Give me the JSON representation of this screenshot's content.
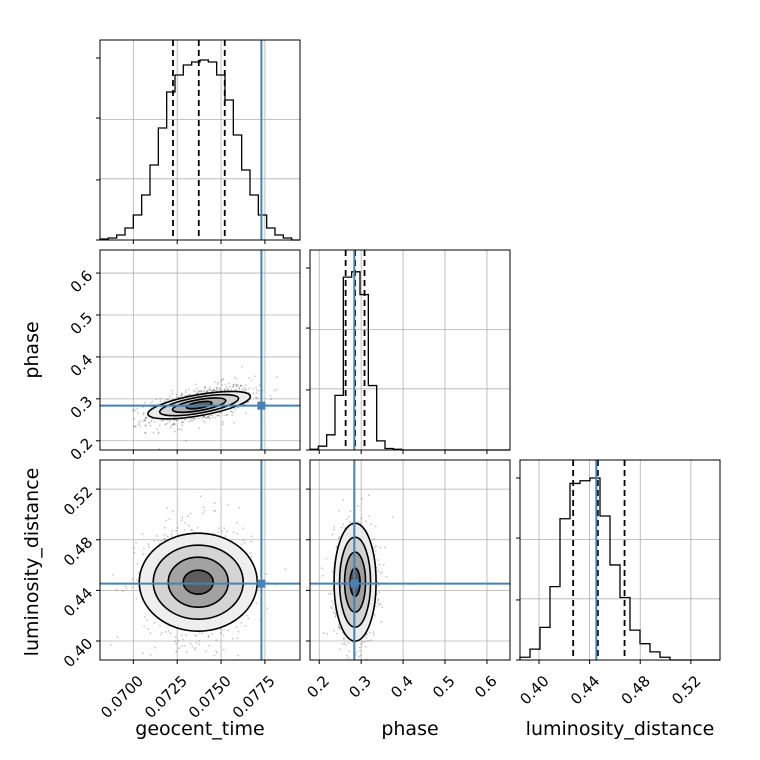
{
  "chart_data": {
    "type": "corner",
    "parameters": [
      "geocent_time",
      "phase",
      "luminosity_distance"
    ],
    "truths": {
      "geocent_time": 0.0773,
      "phase": 0.2837,
      "luminosity_distance": 0.4453
    },
    "quantiles": {
      "geocent_time": [
        0.07226,
        0.07373,
        0.07521
      ],
      "phase": [
        0.263,
        0.2855,
        0.308
      ],
      "luminosity_distance": [
        0.427,
        0.4465,
        0.4676
      ]
    },
    "ranges": {
      "geocent_time": [
        0.0681,
        0.0795
      ],
      "phase": [
        0.178,
        0.655
      ],
      "luminosity_distance": [
        0.385,
        0.543
      ]
    },
    "ticks": {
      "geocent_time": [
        "0.0700",
        "0.0725",
        "0.0750",
        "0.0775"
      ],
      "phase": [
        "0.2",
        "0.3",
        "0.4",
        "0.5",
        "0.6"
      ],
      "luminosity_distance": [
        "0.40",
        "0.44",
        "0.48",
        "0.52"
      ]
    },
    "tick_values": {
      "geocent_time": [
        0.07,
        0.0725,
        0.075,
        0.0775
      ],
      "phase": [
        0.2,
        0.3,
        0.4,
        0.5,
        0.6
      ],
      "luminosity_distance": [
        0.4,
        0.44,
        0.48,
        0.52
      ]
    },
    "histograms": {
      "geocent_time": {
        "counts": [
          1,
          2,
          5,
          12,
          25,
          45,
          75,
          112,
          148,
          165,
          175,
          178,
          180,
          178,
          165,
          140,
          105,
          70,
          45,
          25,
          12,
          5,
          2,
          0
        ],
        "max": 182
      },
      "phase": {
        "counts": [
          1,
          5,
          20,
          72,
          228,
          235,
          205,
          85,
          12,
          2,
          1,
          0,
          0,
          0,
          0,
          0,
          0,
          0,
          0,
          0,
          0,
          0,
          0,
          0
        ],
        "max": 240
      },
      "luminosity_distance": {
        "counts": [
          1,
          4,
          12,
          27,
          52,
          65,
          66,
          67,
          53,
          35,
          23,
          11,
          6,
          3,
          1,
          0,
          0,
          0,
          0,
          0
        ],
        "max": 67
      }
    },
    "grid": true,
    "xlabel_rotation": 45,
    "colors": {
      "truth": "#4682b4",
      "hist": "#000000",
      "quantile": "#000000",
      "density": "#000000",
      "grid": "#b0b0b0"
    }
  }
}
